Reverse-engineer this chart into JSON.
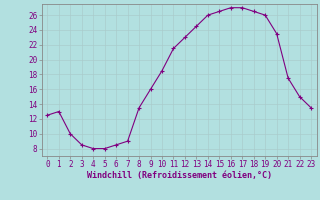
{
  "x": [
    0,
    1,
    2,
    3,
    4,
    5,
    6,
    7,
    8,
    9,
    10,
    11,
    12,
    13,
    14,
    15,
    16,
    17,
    18,
    19,
    20,
    21,
    22,
    23
  ],
  "y": [
    12.5,
    13.0,
    10.0,
    8.5,
    8.0,
    8.0,
    8.5,
    9.0,
    13.5,
    16.0,
    18.5,
    21.5,
    23.0,
    24.5,
    26.0,
    26.5,
    27.0,
    27.0,
    26.5,
    26.0,
    23.5,
    17.5,
    15.0,
    13.5
  ],
  "line_color": "#800080",
  "marker": "+",
  "marker_size": 3,
  "bg_color": "#b2e0e0",
  "grid_color": "#aacccc",
  "xlabel": "Windchill (Refroidissement éolien,°C)",
  "xlabel_color": "#800080",
  "yticks": [
    8,
    10,
    12,
    14,
    16,
    18,
    20,
    22,
    24,
    26
  ],
  "xlim": [
    -0.5,
    23.5
  ],
  "ylim": [
    7,
    27.5
  ],
  "tick_color": "#800080",
  "font_family": "monospace",
  "tick_fontsize": 5.5,
  "xlabel_fontsize": 6.0
}
